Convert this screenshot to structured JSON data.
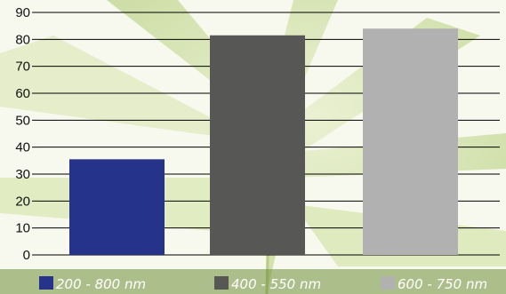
{
  "chart_data": {
    "type": "bar",
    "categories": [
      "200 - 800 nm",
      "400 - 550 nm",
      "600 - 750 nm"
    ],
    "values": [
      35.5,
      81.5,
      84.0
    ],
    "colors": [
      "#25338a",
      "#575756",
      "#b1b1b1"
    ],
    "ylim": [
      0,
      90
    ],
    "yticks": [
      "0",
      "10",
      "20",
      "30",
      "40",
      "50",
      "60",
      "70",
      "80",
      "90"
    ],
    "grid": true,
    "legend_position": "bottom",
    "background": "leaf-photo"
  }
}
